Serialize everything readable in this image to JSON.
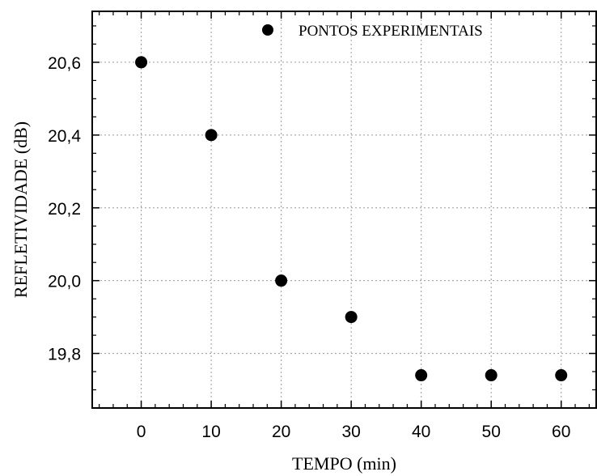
{
  "chart_data": {
    "type": "scatter",
    "xlabel": "TEMPO (min)",
    "ylabel": "REFLETIVIDADE (dB)",
    "xlim": [
      -7,
      65
    ],
    "ylim": [
      19.65,
      20.74
    ],
    "x_ticks": [
      0,
      10,
      20,
      30,
      40,
      50,
      60
    ],
    "x_tick_labels": [
      "0",
      "10",
      "20",
      "30",
      "40",
      "50",
      "60"
    ],
    "y_ticks": [
      19.8,
      20.0,
      20.2,
      20.4,
      20.6
    ],
    "y_tick_labels": [
      "19,8",
      "20,0",
      "20,2",
      "20,4",
      "20,6"
    ],
    "grid": true,
    "legend_position": "top",
    "series": [
      {
        "name": "PONTOS EXPERIMENTAIS",
        "color": "#000000",
        "marker": "circle",
        "x": [
          0,
          10,
          20,
          30,
          40,
          50,
          60
        ],
        "y": [
          20.6,
          20.4,
          20.0,
          19.9,
          19.74,
          19.74,
          19.74
        ]
      }
    ]
  }
}
